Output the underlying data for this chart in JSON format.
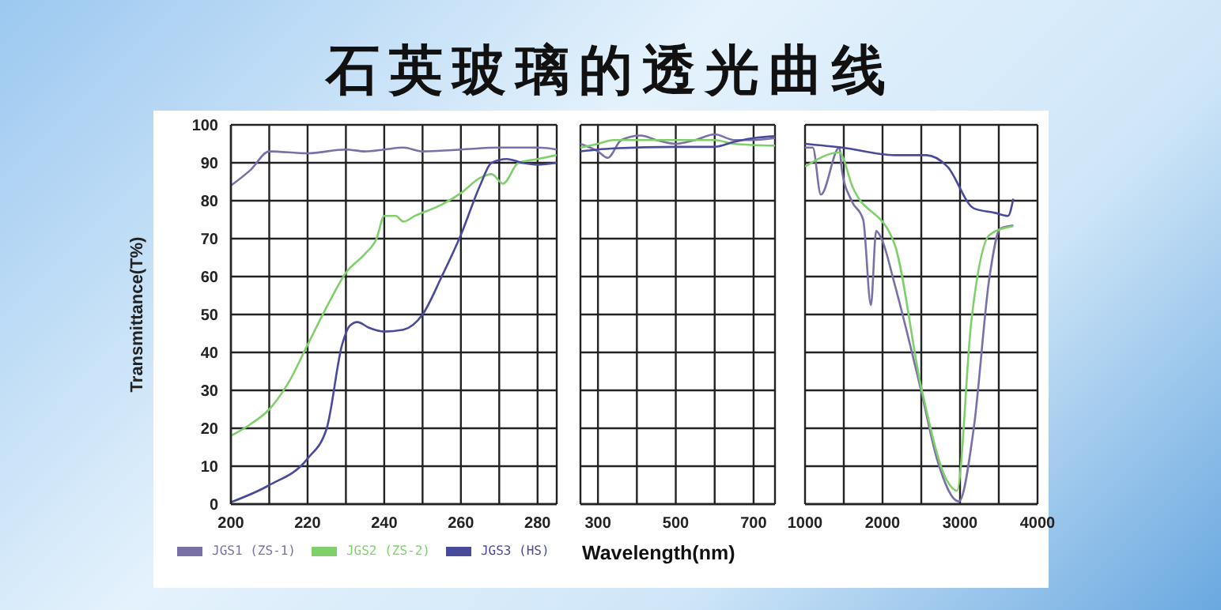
{
  "chart_data": [
    {
      "type": "line",
      "title": "石英玻璃的透光曲线",
      "ylabel": "Transmittance(T%)",
      "xlim": [
        200,
        285
      ],
      "xticks": [
        200,
        {
          "value": 210,
          "label": null
        },
        220,
        {
          "value": 230,
          "label": null
        },
        240,
        {
          "value": 250,
          "label": null
        },
        260,
        {
          "value": 270,
          "label": null
        },
        280
      ],
      "ylim": [
        0,
        100
      ],
      "yticks": [
        0,
        10,
        20,
        30,
        40,
        50,
        60,
        70,
        80,
        90,
        100
      ],
      "grid": true,
      "legend": "bottom",
      "marker": "none",
      "line_style": "solid",
      "series": [
        {
          "name": "JGS1 (ZS-1)",
          "color": "#7a70a8",
          "x": [
            200,
            205,
            210,
            220,
            230,
            235,
            240,
            245,
            250,
            260,
            270,
            280,
            285
          ],
          "values": [
            84,
            88,
            93,
            92.5,
            93.5,
            93,
            93.5,
            94,
            93,
            93.5,
            94,
            94,
            93.5
          ]
        },
        {
          "name": "JGS2 (ZS-2)",
          "color": "#7fd06a",
          "x": [
            200,
            205,
            210,
            215,
            220,
            225,
            230,
            235,
            238,
            240,
            243,
            245,
            248,
            255,
            260,
            265,
            268,
            271,
            275,
            280,
            285
          ],
          "values": [
            18,
            21,
            25,
            32,
            42,
            52,
            61,
            66,
            70,
            76,
            76,
            74.5,
            76,
            79,
            82,
            86,
            87,
            84.5,
            90,
            91,
            92
          ]
        },
        {
          "name": "JGS3 (HS)",
          "color": "#4a4a9a",
          "x": [
            200,
            210,
            220,
            225,
            229,
            231,
            233,
            236,
            240,
            245,
            250,
            255,
            260,
            265,
            268,
            272,
            276,
            280,
            285
          ],
          "values": [
            0.5,
            5,
            12,
            20,
            42,
            47,
            48,
            46.5,
            45.5,
            46,
            50,
            60,
            71,
            84,
            90,
            91,
            90,
            89.5,
            90
          ]
        }
      ]
    },
    {
      "type": "line",
      "xlabel": "Wavelength(nm)",
      "xlim": [
        255,
        755
      ],
      "xticks": [
        300,
        {
          "value": 400,
          "label": null
        },
        500,
        {
          "value": 600,
          "label": null
        },
        700
      ],
      "ylim": [
        0,
        100
      ],
      "yticks": [
        {
          "value": 0,
          "label": null
        },
        {
          "value": 10,
          "label": null
        },
        {
          "value": 20,
          "label": null
        },
        {
          "value": 30,
          "label": null
        },
        {
          "value": 40,
          "label": null
        },
        {
          "value": 50,
          "label": null
        },
        {
          "value": 60,
          "label": null
        },
        {
          "value": 70,
          "label": null
        },
        {
          "value": 80,
          "label": null
        },
        {
          "value": 90,
          "label": null
        },
        {
          "value": 100,
          "label": null
        }
      ],
      "tick_labels": "x",
      "grid": true,
      "marker": "none",
      "line_style": "solid",
      "series": [
        {
          "color": "#7a70a8",
          "x": [
            255,
            280,
            300,
            325,
            360,
            410,
            450,
            500,
            550,
            600,
            650,
            700,
            755
          ],
          "values": [
            95,
            94,
            93,
            91.3,
            96,
            97.2,
            96,
            95,
            96,
            97.5,
            96,
            96,
            96.5
          ]
        },
        {
          "color": "#7fd06a",
          "x": [
            255,
            300,
            340,
            500,
            600,
            650,
            755
          ],
          "values": [
            94,
            95,
            96,
            96,
            96,
            95,
            94.5
          ]
        },
        {
          "color": "#4a4a9a",
          "x": [
            255,
            300,
            340,
            500,
            600,
            650,
            700,
            755
          ],
          "values": [
            93,
            93.5,
            93.8,
            94.2,
            94.2,
            95.5,
            96.5,
            97
          ]
        }
      ]
    },
    {
      "type": "line",
      "xlim": [
        1000,
        4000
      ],
      "xticks": [
        1000,
        {
          "value": 1500,
          "label": null
        },
        2000,
        {
          "value": 2500,
          "label": null
        },
        3000,
        {
          "value": 3500,
          "label": null
        },
        4000
      ],
      "ylim": [
        0,
        100
      ],
      "yticks": [
        {
          "value": 0,
          "label": null
        },
        {
          "value": 10,
          "label": null
        },
        {
          "value": 20,
          "label": null
        },
        {
          "value": 30,
          "label": null
        },
        {
          "value": 40,
          "label": null
        },
        {
          "value": 50,
          "label": null
        },
        {
          "value": 60,
          "label": null
        },
        {
          "value": 70,
          "label": null
        },
        {
          "value": 80,
          "label": null
        },
        {
          "value": 90,
          "label": null
        },
        {
          "value": 100,
          "label": null
        }
      ],
      "tick_labels": "x",
      "grid": true,
      "marker": "none",
      "line_style": "solid",
      "series": [
        {
          "color": "#7a70a8",
          "x": [
            1000,
            1100,
            1204,
            1442,
            1476,
            1600,
            1750,
            1850,
            1918,
            1986,
            2156,
            2497,
            2701,
            2986,
            3177,
            3381,
            3517,
            3687
          ],
          "values": [
            94,
            94,
            81.6,
            94,
            88,
            80,
            75,
            52.5,
            72,
            70,
            58,
            30,
            12,
            0.7,
            20,
            60,
            72.6,
            73.5
          ]
        },
        {
          "color": "#7fd06a",
          "x": [
            1000,
            1442,
            1612,
            2156,
            2497,
            2837,
            2960,
            3143,
            3381,
            3687
          ],
          "values": [
            89,
            92.7,
            83.7,
            68.5,
            31,
            6,
            3.5,
            47.7,
            71,
            73.3
          ]
        },
        {
          "color": "#4a4a9a",
          "x": [
            1000,
            1476,
            2156,
            2565,
            2837,
            3177,
            3449,
            3619,
            3687
          ],
          "values": [
            95,
            94,
            92,
            92,
            89,
            78,
            76.8,
            76,
            80.5
          ]
        }
      ]
    }
  ]
}
